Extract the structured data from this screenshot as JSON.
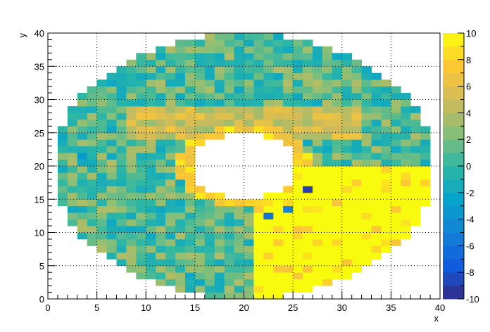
{
  "chart_data": {
    "type": "heatmap",
    "title": "",
    "xlabel": "x",
    "ylabel": "y",
    "xlim": [
      0,
      40
    ],
    "ylim": [
      0,
      40
    ],
    "bin_size": 1,
    "x_ticks": [
      "0",
      "5",
      "10",
      "15",
      "20",
      "25",
      "30",
      "35",
      "40"
    ],
    "y_ticks": [
      "0",
      "5",
      "10",
      "15",
      "20",
      "25",
      "30",
      "35",
      "40"
    ],
    "grid": true,
    "colorbar": {
      "range": [
        -10,
        10
      ],
      "ticks": [
        "-10",
        "-8",
        "-6",
        "-4",
        "-2",
        "0",
        "2",
        "4",
        "6",
        "8",
        "10"
      ],
      "palette": [
        "#352a87",
        "#0f5cdd",
        "#1481d6",
        "#06a4ca",
        "#2eb7a4",
        "#87bf77",
        "#d1bb59",
        "#fec832",
        "#f9fb0e"
      ]
    },
    "image": {
      "outer_ellipse": {
        "center": [
          20,
          20
        ],
        "radii": [
          19.5,
          20
        ]
      },
      "inner_hole": {
        "center": [
          20,
          20
        ],
        "radii": [
          5.5,
          5
        ]
      },
      "hot_region": "lower-right quadrant (x >= 21, y <= 20) saturated at +10",
      "hot_ring": "inner ring around hole saturated at +10",
      "background_range": [
        -2,
        4
      ],
      "cold_cells": [
        {
          "x": 26,
          "y": 16,
          "value": -9
        },
        {
          "x": 22,
          "y": 12,
          "value": -6
        },
        {
          "x": 24,
          "y": 13,
          "value": -5
        },
        {
          "x": 3,
          "y": 21,
          "value": -3
        }
      ]
    }
  }
}
